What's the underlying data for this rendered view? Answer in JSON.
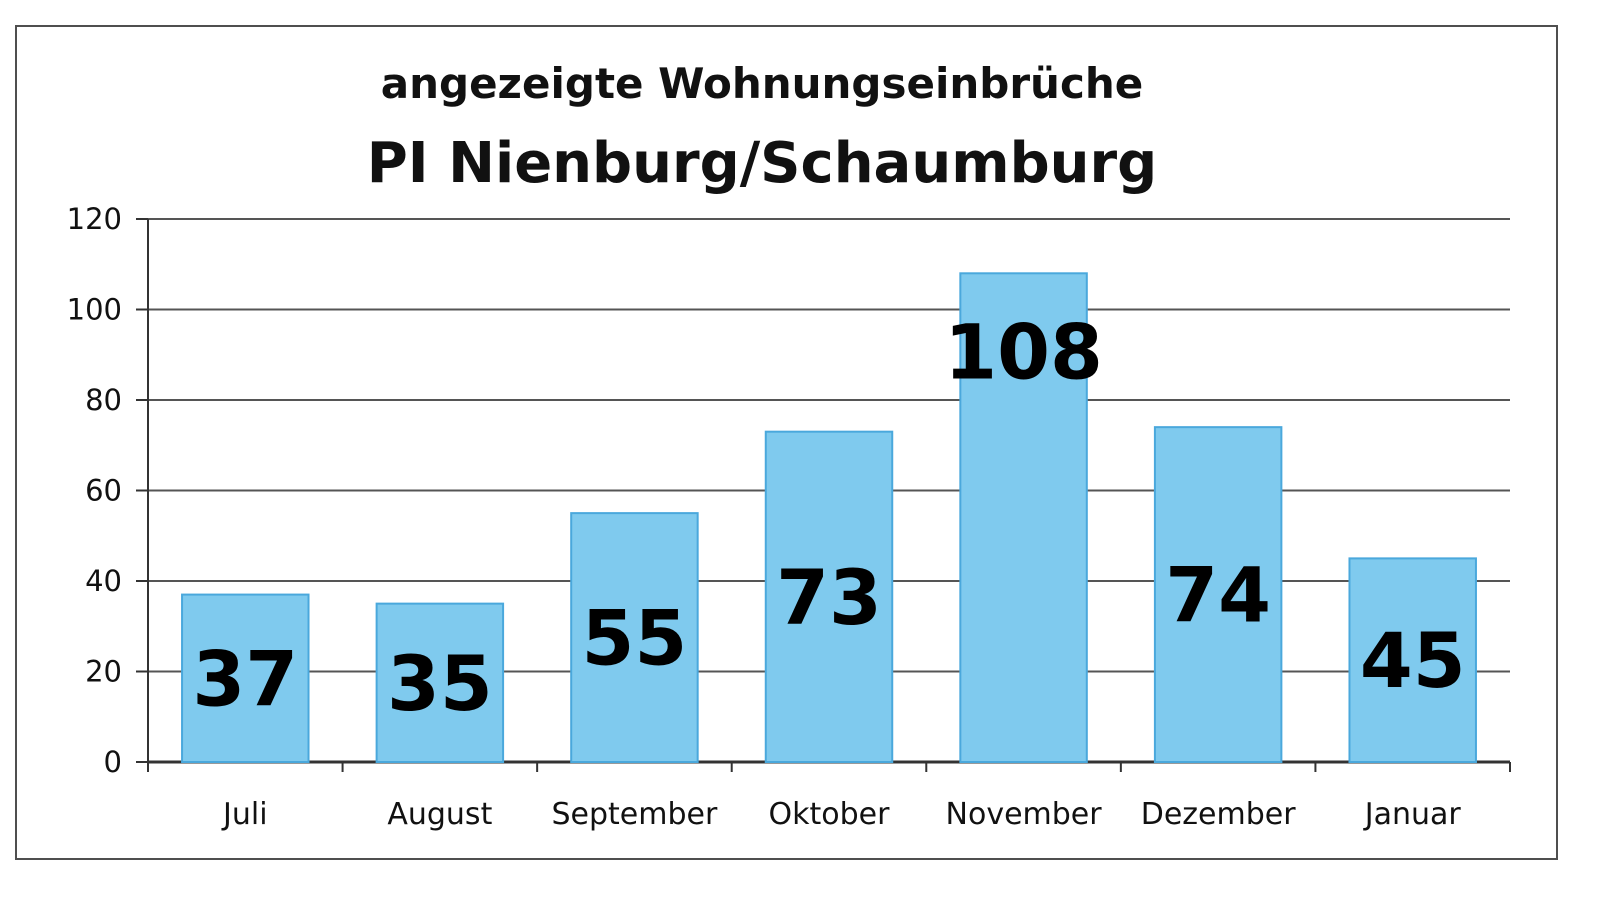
{
  "chart_data": {
    "type": "bar",
    "title": "angezeigte Wohnungseinbrüche",
    "subtitle": "PI Nienburg/Schaumburg",
    "xlabel": "",
    "ylabel": "",
    "categories": [
      "Juli",
      "August",
      "September",
      "Oktober",
      "November",
      "Dezember",
      "Januar"
    ],
    "values": [
      37,
      35,
      55,
      73,
      108,
      74,
      45
    ],
    "data_labels": [
      "37",
      "35",
      "55",
      "73",
      "108",
      "74",
      "45"
    ],
    "ylim": [
      0,
      120
    ],
    "yticks": [
      0,
      20,
      40,
      60,
      80,
      100,
      120
    ],
    "grid": true,
    "legend": "none",
    "colors": {
      "bar": "#7fcaee",
      "bar_edge": "#4aa8dc",
      "grid": "#555555",
      "axis": "#333333",
      "text": "#111111"
    }
  }
}
